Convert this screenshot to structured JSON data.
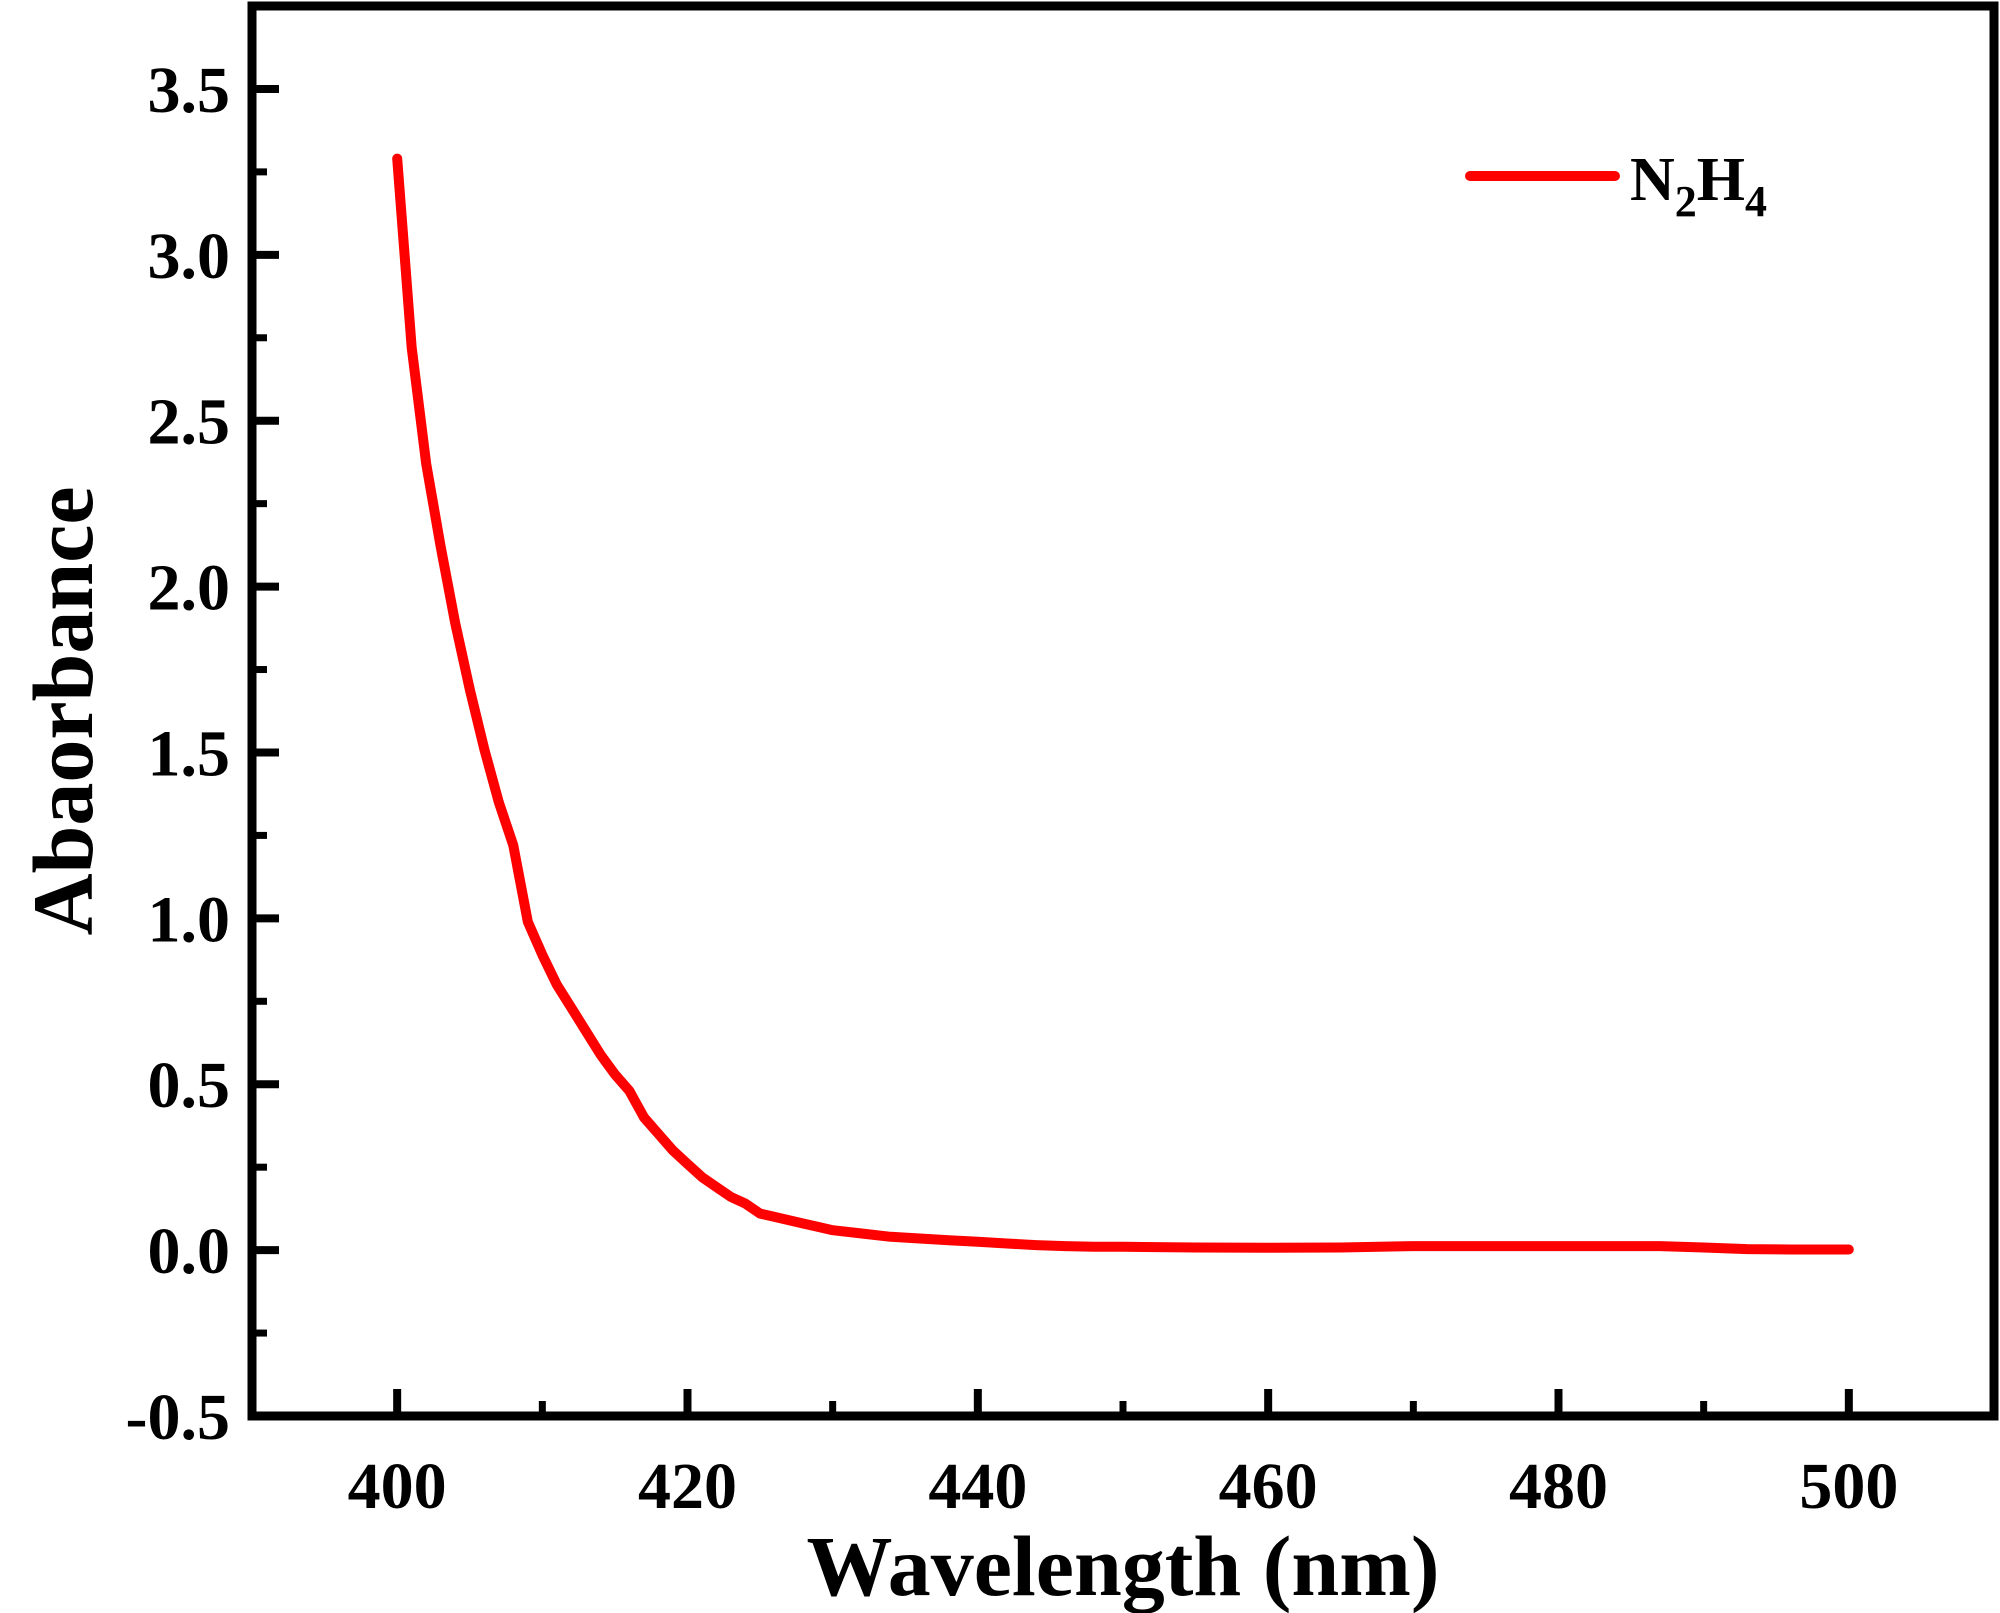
{
  "chart_data": {
    "type": "line",
    "title": "",
    "xlabel": "Wavelength (nm)",
    "ylabel": "Abaorbance",
    "xlim": [
      390,
      510
    ],
    "ylim": [
      -0.5,
      3.75
    ],
    "x_ticks": [
      400,
      420,
      440,
      460,
      480,
      500
    ],
    "x_tick_labels": [
      "400",
      "420",
      "440",
      "460",
      "480",
      "500"
    ],
    "y_ticks": [
      -0.5,
      0.0,
      0.5,
      1.0,
      1.5,
      2.0,
      2.5,
      3.0,
      3.5
    ],
    "y_tick_labels": [
      "-0.5",
      "0.0",
      "0.5",
      "1.0",
      "1.5",
      "2.0",
      "2.5",
      "3.0",
      "3.5"
    ],
    "grid": false,
    "legend": {
      "position": "top-right",
      "entries": [
        {
          "label_main": "N",
          "sub1": "2",
          "mid": "H",
          "sub2": "4"
        }
      ]
    },
    "series": [
      {
        "name": "N2H4",
        "color": "#ff0000",
        "x": [
          400,
          401,
          402,
          403,
          404,
          405,
          406,
          407,
          408,
          409,
          410,
          411,
          412,
          413,
          414,
          415,
          416,
          417,
          418,
          419,
          420,
          421,
          422,
          423,
          424,
          425,
          426,
          427,
          428,
          429,
          430,
          432,
          434,
          436,
          438,
          440,
          442,
          444,
          446,
          448,
          450,
          455,
          460,
          465,
          470,
          475,
          480,
          485,
          487,
          490,
          493,
          496,
          500
        ],
        "y": [
          3.29,
          2.72,
          2.37,
          2.12,
          1.89,
          1.69,
          1.51,
          1.35,
          1.22,
          0.99,
          0.89,
          0.8,
          0.73,
          0.66,
          0.59,
          0.53,
          0.48,
          0.4,
          0.35,
          0.3,
          0.26,
          0.22,
          0.19,
          0.16,
          0.14,
          0.11,
          0.1,
          0.09,
          0.08,
          0.07,
          0.06,
          0.05,
          0.04,
          0.035,
          0.03,
          0.025,
          0.02,
          0.015,
          0.012,
          0.01,
          0.01,
          0.008,
          0.007,
          0.008,
          0.012,
          0.012,
          0.012,
          0.012,
          0.012,
          0.008,
          0.003,
          0.002,
          0.002
        ]
      }
    ]
  }
}
